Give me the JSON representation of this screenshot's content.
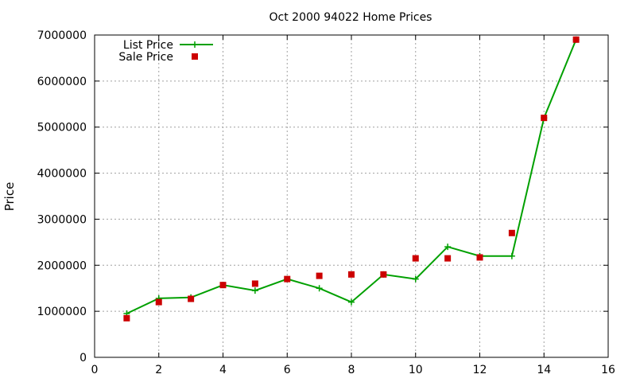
{
  "chart_data": {
    "type": "line",
    "title": "Oct 2000 94022 Home Prices",
    "xlabel": "",
    "ylabel": "Price",
    "xlim": [
      0,
      16
    ],
    "ylim": [
      0,
      7000000
    ],
    "xticks": [
      "0",
      "2",
      "4",
      "6",
      "8",
      "10",
      "12",
      "14",
      "16"
    ],
    "yticks": [
      "0",
      "1000000",
      "2000000",
      "3000000",
      "4000000",
      "5000000",
      "6000000",
      "7000000"
    ],
    "grid": true,
    "legend_position": "top-left",
    "series": [
      {
        "name": "List Price",
        "style": "line-with-plus-markers",
        "color": "#00a000",
        "x": [
          1,
          2,
          3,
          4,
          5,
          6,
          7,
          8,
          9,
          10,
          11,
          12,
          13,
          14,
          15
        ],
        "values": [
          950000,
          1280000,
          1300000,
          1570000,
          1450000,
          1700000,
          1500000,
          1200000,
          1800000,
          1700000,
          2400000,
          2200000,
          2200000,
          5200000,
          6900000
        ]
      },
      {
        "name": "Sale Price",
        "style": "square-points",
        "color": "#cc0000",
        "x": [
          1,
          2,
          3,
          4,
          5,
          6,
          7,
          8,
          9,
          10,
          11,
          12,
          13,
          14,
          15
        ],
        "values": [
          850000,
          1200000,
          1270000,
          1570000,
          1600000,
          1700000,
          1770000,
          1800000,
          1800000,
          2150000,
          2150000,
          2170000,
          2700000,
          5200000,
          6900000
        ]
      }
    ]
  }
}
